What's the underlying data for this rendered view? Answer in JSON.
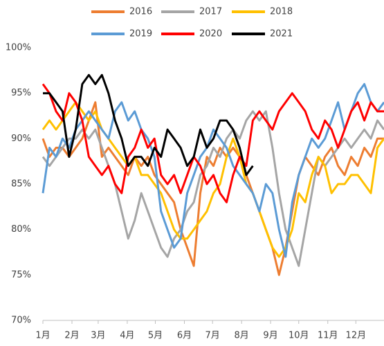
{
  "chart_data": {
    "type": "line",
    "x": [
      0,
      1,
      2,
      3,
      4,
      5,
      6,
      7,
      8,
      9,
      10,
      11,
      12,
      13,
      14,
      15,
      16,
      17,
      18,
      19,
      20,
      21,
      22,
      23,
      24,
      25,
      26,
      27,
      28,
      29,
      30,
      31,
      32,
      33,
      34,
      35,
      36,
      37,
      38,
      39,
      40,
      41,
      42,
      43,
      44,
      45,
      46,
      47,
      48,
      49,
      50,
      51,
      52
    ],
    "xlim": [
      0,
      52
    ],
    "xticks": [
      {
        "value": 0,
        "label": "1月"
      },
      {
        "value": 4.43,
        "label": "2月"
      },
      {
        "value": 8.43,
        "label": "3月"
      },
      {
        "value": 12.86,
        "label": "4月"
      },
      {
        "value": 17.14,
        "label": "5月"
      },
      {
        "value": 21.57,
        "label": "6月"
      },
      {
        "value": 25.86,
        "label": "7月"
      },
      {
        "value": 30.29,
        "label": "8月"
      },
      {
        "value": 34.71,
        "label": "9月"
      },
      {
        "value": 39,
        "label": "10月"
      },
      {
        "value": 43.43,
        "label": "11月"
      },
      {
        "value": 47.71,
        "label": "12月"
      }
    ],
    "ylim": [
      70,
      100
    ],
    "yticks": [
      {
        "value": 70,
        "label": "70%"
      },
      {
        "value": 75,
        "label": "75%"
      },
      {
        "value": 80,
        "label": "80%"
      },
      {
        "value": 85,
        "label": "85%"
      },
      {
        "value": 90,
        "label": "90%"
      },
      {
        "value": 95,
        "label": "95%"
      },
      {
        "value": 100,
        "label": "100%"
      }
    ],
    "series": [
      {
        "name": "2016",
        "color": "#ed7d31",
        "values": [
          90,
          88,
          89,
          89,
          88,
          89,
          90,
          92,
          94,
          88,
          89,
          88,
          87,
          86,
          88,
          87,
          88,
          86,
          85,
          84,
          83,
          80,
          78,
          76,
          84,
          88,
          87,
          89,
          88,
          89,
          88,
          86,
          84,
          82,
          80,
          78,
          75,
          78,
          82,
          86,
          88,
          87,
          86,
          88,
          89,
          87,
          86,
          88,
          87,
          89,
          88,
          90,
          90
        ]
      },
      {
        "name": "2017",
        "color": "#a5a5a5",
        "values": [
          88,
          87,
          88,
          89,
          90,
          90,
          91,
          90,
          91,
          89,
          87,
          85,
          82,
          79,
          81,
          84,
          82,
          80,
          78,
          77,
          79,
          80,
          82,
          83,
          86,
          87,
          89,
          88,
          90,
          91,
          90,
          92,
          93,
          92,
          93,
          89,
          84,
          80,
          78,
          76,
          80,
          84,
          88,
          87,
          88,
          89,
          90,
          89,
          90,
          91,
          90,
          92,
          91
        ]
      },
      {
        "name": "2018",
        "color": "#ffc000",
        "values": [
          91,
          92,
          91,
          92,
          93,
          94,
          93,
          92,
          93,
          91,
          90,
          89,
          88,
          87,
          88,
          86,
          86,
          85,
          84,
          82,
          80,
          79,
          79,
          80,
          81,
          82,
          84,
          85,
          88,
          90,
          88,
          85,
          84,
          82,
          80,
          78,
          77,
          78,
          80,
          84,
          83,
          86,
          88,
          87,
          84,
          85,
          85,
          86,
          86,
          85,
          84,
          89,
          90
        ]
      },
      {
        "name": "2019",
        "color": "#5b9bd5",
        "values": [
          84,
          89,
          88,
          90,
          89,
          91,
          92,
          93,
          92,
          91,
          90,
          93,
          94,
          92,
          93,
          91,
          90,
          88,
          82,
          80,
          78,
          79,
          84,
          86,
          88,
          89,
          91,
          90,
          89,
          87,
          86,
          85,
          84,
          82,
          85,
          84,
          80,
          77,
          83,
          86,
          88,
          90,
          89,
          90,
          92,
          94,
          91,
          93,
          95,
          96,
          94,
          93,
          94
        ]
      },
      {
        "name": "2020",
        "color": "#ff0000",
        "values": [
          96,
          95,
          93,
          92,
          95,
          94,
          92,
          88,
          87,
          86,
          87,
          85,
          84,
          88,
          89,
          91,
          89,
          90,
          86,
          85,
          86,
          84,
          86,
          88,
          87,
          85,
          86,
          84,
          83,
          86,
          88,
          87,
          92,
          93,
          92,
          91,
          93,
          94,
          95,
          94,
          93,
          91,
          90,
          92,
          91,
          89,
          91,
          93,
          94,
          92,
          94,
          93,
          93
        ]
      },
      {
        "name": "2021",
        "color": "#000000",
        "values": [
          95,
          95,
          94,
          93,
          88,
          91,
          96,
          97,
          96,
          97,
          95,
          92,
          90,
          87,
          88,
          88,
          87,
          89,
          88,
          91,
          90,
          89,
          87,
          88,
          91,
          89,
          90,
          92,
          92,
          91,
          89,
          86,
          87,
          null,
          null,
          null,
          null,
          null,
          null,
          null,
          null,
          null,
          null,
          null,
          null,
          null,
          null,
          null,
          null,
          null,
          null,
          null,
          null
        ]
      }
    ]
  }
}
